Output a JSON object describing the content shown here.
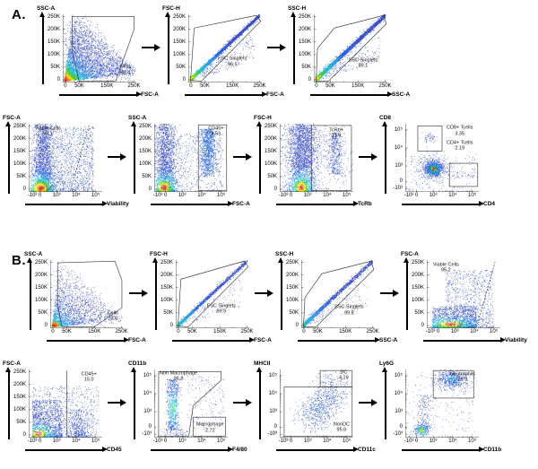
{
  "figure": {
    "panels": [
      {
        "label": "A.",
        "indents": [
          40,
          2
        ],
        "rows": [
          [
            0,
            1,
            2
          ],
          [
            3,
            4,
            5,
            6
          ]
        ]
      },
      {
        "label": "B.",
        "indents": [
          26,
          2
        ],
        "rows": [
          [
            7,
            8,
            9,
            10
          ],
          [
            11,
            12,
            13,
            14
          ]
        ]
      }
    ]
  },
  "axes": {
    "linear_y": [
      {
        "t": "250K",
        "f": 0.965
      },
      {
        "t": "200K",
        "f": 0.78
      },
      {
        "t": "150K",
        "f": 0.595
      },
      {
        "t": "100K",
        "f": 0.41
      },
      {
        "t": "50K",
        "f": 0.225
      },
      {
        "t": "0",
        "f": 0.04
      }
    ],
    "linear_x": [
      {
        "t": "0",
        "f": 0.035
      },
      {
        "t": "50K",
        "f": 0.225
      },
      {
        "t": "150K",
        "f": 0.6
      },
      {
        "t": "250K",
        "f": 0.97
      }
    ],
    "log": [
      {
        "t": "-10³",
        "f": 0.05
      },
      {
        "t": "0",
        "f": 0.155
      },
      {
        "t": "10³",
        "f": 0.38
      },
      {
        "t": "10⁴",
        "f": 0.645
      },
      {
        "t": "10⁵",
        "f": 0.91
      }
    ],
    "linear_x_minor": [
      0.41,
      0.79
    ],
    "linear_range": [
      0,
      250000
    ],
    "log_range": [
      -1000,
      100000
    ]
  },
  "chart_data": [
    {
      "id": "a-cells",
      "panel": "A",
      "type": "scatter",
      "mode": "pseudocolor-density",
      "ylabel": "SSC-A",
      "xlabel": "FSC-A",
      "yscale": "linear",
      "xscale": "linear",
      "population": "comet-dense",
      "gates": [
        {
          "name": "Cells",
          "percent": 88.4,
          "value_text": "88.4",
          "shape": "polygon",
          "pts": [
            [
              0.13,
              0.97
            ],
            [
              0.97,
              0.97
            ],
            [
              0.97,
              0.78
            ],
            [
              0.72,
              0.02
            ],
            [
              0.22,
              0.02
            ],
            [
              0.13,
              0.45
            ]
          ],
          "label": [
            0.85,
            0.18
          ]
        }
      ]
    },
    {
      "id": "a-fsc-singlets",
      "panel": "A",
      "type": "scatter",
      "mode": "pseudocolor-density",
      "ylabel": "FSC-H",
      "xlabel": "FSC-A",
      "yscale": "linear",
      "xscale": "linear",
      "population": "singlets",
      "gates": [
        {
          "name": "FSC Singlets",
          "percent": 99.5,
          "value_text": "99.5",
          "shape": "polygon",
          "pts": [
            [
              0.03,
              0.03
            ],
            [
              0.08,
              0.8
            ],
            [
              0.93,
              0.985
            ],
            [
              0.985,
              0.9
            ],
            [
              0.18,
              0.02
            ]
          ],
          "label": [
            0.6,
            0.3
          ]
        }
      ]
    },
    {
      "id": "a-ssc-singlets",
      "panel": "A",
      "type": "scatter",
      "mode": "pseudocolor-density",
      "ylabel": "SSC-H",
      "xlabel": "SSC-A",
      "yscale": "linear",
      "xscale": "linear",
      "population": "singlets2",
      "gates": [
        {
          "name": "SSC Singlets",
          "percent": 99.1,
          "value_text": "99.1",
          "shape": "polygon",
          "pts": [
            [
              0.03,
              0.02
            ],
            [
              0.05,
              0.5
            ],
            [
              0.28,
              0.8
            ],
            [
              0.95,
              0.985
            ],
            [
              0.985,
              0.86
            ],
            [
              0.2,
              0.02
            ]
          ],
          "label": [
            0.67,
            0.28
          ]
        }
      ]
    },
    {
      "id": "a-viable",
      "panel": "A",
      "type": "scatter",
      "mode": "pseudocolor-density",
      "ylabel": "FSC-A",
      "xlabel": "Viability",
      "yscale": "linear",
      "xscale": "log",
      "population": "viabilityA",
      "gates": [
        {
          "name": "Viable Cells",
          "percent": 98.1,
          "value_text": "98.1",
          "shape": "line-dashed",
          "pts": [
            [
              0.57,
              0.02
            ],
            [
              0.82,
              0.98
            ]
          ],
          "label": [
            0.26,
            0.88
          ]
        }
      ]
    },
    {
      "id": "a-cd45",
      "panel": "A",
      "type": "scatter",
      "mode": "pseudocolor-density",
      "ylabel": "SSC-A",
      "xlabel": "FSC-A",
      "yscale": "linear",
      "xscale": "log",
      "population": "cd45A",
      "gates": [
        {
          "name": "CD45+",
          "percent": 8.53,
          "value_text": "8.53",
          "shape": "rect",
          "pts": [
            [
              0.6,
              0.02
            ],
            [
              0.985,
              0.985
            ]
          ],
          "label": [
            0.84,
            0.88
          ]
        }
      ]
    },
    {
      "id": "a-tcrb",
      "panel": "A",
      "type": "scatter",
      "mode": "pseudocolor-density",
      "ylabel": "FSC-H",
      "xlabel": "TcRb",
      "yscale": "linear",
      "xscale": "log",
      "population": "tcrb",
      "gates": [
        {
          "name": "TcRb+",
          "percent": 11.9,
          "value_text": "11.9",
          "shape": "rect",
          "pts": [
            [
              0.43,
              0.02
            ],
            [
              0.975,
              0.975
            ]
          ],
          "label": [
            0.77,
            0.86
          ]
        }
      ]
    },
    {
      "id": "a-tcell-subsets",
      "panel": "A",
      "type": "scatter",
      "mode": "pseudocolor-density",
      "ylabel": "CD8",
      "xlabel": "CD4",
      "yscale": "log",
      "xscale": "log",
      "population": "tcells",
      "gates": [
        {
          "name": "CD8+ Tcells",
          "percent": 3.35,
          "value_text": "3.35",
          "shape": "rect",
          "pts": [
            [
              0.17,
              0.6
            ],
            [
              0.5,
              0.97
            ]
          ],
          "label": [
            0.74,
            0.89
          ]
        },
        {
          "name": "CD4+ Tcells",
          "percent": 2.19,
          "value_text": "2.19",
          "shape": "rect",
          "pts": [
            [
              0.6,
              0.08
            ],
            [
              0.985,
              0.42
            ]
          ],
          "label": [
            0.74,
            0.67
          ]
        }
      ]
    },
    {
      "id": "b-cells",
      "panel": "B",
      "type": "scatter",
      "mode": "pseudocolor-density",
      "ylabel": "SSC-A",
      "xlabel": "FSC-A",
      "yscale": "linear",
      "xscale": "linear",
      "population": "comet-sparse",
      "gates": [
        {
          "name": "Cells",
          "percent": 72.8,
          "value_text": "72.8",
          "shape": "polygon",
          "pts": [
            [
              0.1,
              0.96
            ],
            [
              0.88,
              0.985
            ],
            [
              0.975,
              0.7
            ],
            [
              0.975,
              0.3
            ],
            [
              0.6,
              0.02
            ],
            [
              0.16,
              0.02
            ],
            [
              0.1,
              0.35
            ]
          ],
          "label": [
            0.85,
            0.17
          ]
        }
      ]
    },
    {
      "id": "b-fsc-singlets",
      "panel": "B",
      "type": "scatter",
      "mode": "pseudocolor-density",
      "ylabel": "FSC-H",
      "xlabel": "FSC-A",
      "yscale": "linear",
      "xscale": "linear",
      "population": "singlets-sparse",
      "gates": [
        {
          "name": "FSC Singlets",
          "percent": 99.9,
          "value_text": "99.9",
          "shape": "polygon",
          "pts": [
            [
              0.03,
              0.03
            ],
            [
              0.07,
              0.72
            ],
            [
              0.93,
              0.985
            ],
            [
              0.985,
              0.9
            ],
            [
              0.17,
              0.02
            ]
          ],
          "label": [
            0.62,
            0.28
          ]
        }
      ]
    },
    {
      "id": "b-ssc-singlets",
      "panel": "B",
      "type": "scatter",
      "mode": "pseudocolor-density",
      "ylabel": "SSC-H",
      "xlabel": "SSC-A",
      "yscale": "linear",
      "xscale": "linear",
      "population": "singlets2-sparse",
      "gates": [
        {
          "name": "SSC Singlets",
          "percent": 99.8,
          "value_text": "99.8",
          "shape": "polygon",
          "pts": [
            [
              0.03,
              0.02
            ],
            [
              0.05,
              0.45
            ],
            [
              0.28,
              0.8
            ],
            [
              0.95,
              0.985
            ],
            [
              0.985,
              0.86
            ],
            [
              0.2,
              0.02
            ]
          ],
          "label": [
            0.65,
            0.26
          ]
        }
      ]
    },
    {
      "id": "b-viable",
      "panel": "B",
      "type": "scatter",
      "mode": "pseudocolor-density",
      "ylabel": "FSC-A",
      "xlabel": "Viability",
      "yscale": "linear",
      "xscale": "log",
      "population": "viabilityB",
      "gates": [
        {
          "name": "Viable Cells",
          "percent": 95.2,
          "value_text": "95.2",
          "shape": "line-dashed",
          "pts": [
            [
              0.68,
              0.02
            ],
            [
              0.93,
              0.98
            ]
          ],
          "label": [
            0.26,
            0.88
          ]
        }
      ]
    },
    {
      "id": "b-cd45",
      "panel": "B",
      "type": "scatter",
      "mode": "pseudocolor-density",
      "ylabel": "FSC-A",
      "xlabel": "CD45",
      "yscale": "linear",
      "xscale": "log",
      "population": "cd45B",
      "gates": [
        {
          "name": "CD45+",
          "percent": 15.0,
          "value_text": "15.0",
          "shape": "vline",
          "pts": [
            [
              0.52,
              0.02
            ],
            [
              0.52,
              0.985
            ]
          ],
          "label": [
            0.82,
            0.88
          ]
        }
      ]
    },
    {
      "id": "b-macrophage",
      "panel": "B",
      "type": "scatter",
      "mode": "pseudocolor-density",
      "ylabel": "CD11b",
      "xlabel": "F4/80",
      "yscale": "log",
      "xscale": "log",
      "population": "macrophage",
      "gates": [
        {
          "name": "Non Macrophage",
          "percent": 96.8,
          "value_text": "96.8",
          "shape": "polygon",
          "pts": [
            [
              0.06,
              0.02
            ],
            [
              0.06,
              0.97
            ],
            [
              0.91,
              0.97
            ],
            [
              0.91,
              0.84
            ],
            [
              0.53,
              0.47
            ],
            [
              0.47,
              0.02
            ]
          ],
          "label": [
            0.33,
            0.9
          ]
        },
        {
          "name": "Macrophage",
          "percent": 2.72,
          "value_text": "2.72",
          "shape": "rect",
          "pts": [
            [
              0.53,
              0.02
            ],
            [
              0.97,
              0.3
            ]
          ],
          "label": [
            0.76,
            0.14
          ]
        }
      ]
    },
    {
      "id": "b-dc",
      "panel": "B",
      "type": "scatter",
      "mode": "pseudocolor-density",
      "ylabel": "MHCII",
      "xlabel": "CD11c",
      "yscale": "log",
      "xscale": "log",
      "population": "dcplot",
      "gates": [
        {
          "name": "DC",
          "percent": 4.19,
          "value_text": "4.19",
          "shape": "rect",
          "pts": [
            [
              0.55,
              0.745
            ],
            [
              0.985,
              0.985
            ]
          ],
          "label": [
            0.87,
            0.91
          ]
        },
        {
          "name": "NonDC",
          "percent": 95.6,
          "value_text": "95.6",
          "shape": "rect",
          "pts": [
            [
              0.06,
              0.02
            ],
            [
              0.985,
              0.745
            ]
          ],
          "label": [
            0.84,
            0.15
          ]
        }
      ]
    },
    {
      "id": "b-neutrophils",
      "panel": "B",
      "type": "scatter",
      "mode": "pseudocolor-density",
      "ylabel": "Ly6G",
      "xlabel": "CD11b",
      "yscale": "log",
      "xscale": "log",
      "population": "neutro",
      "gates": [
        {
          "name": "Neutrophils",
          "percent": 29.9,
          "value_text": "29.9",
          "shape": "rect",
          "pts": [
            [
              0.38,
              0.58
            ],
            [
              0.93,
              0.985
            ]
          ],
          "label": [
            0.78,
            0.88
          ]
        }
      ]
    }
  ]
}
